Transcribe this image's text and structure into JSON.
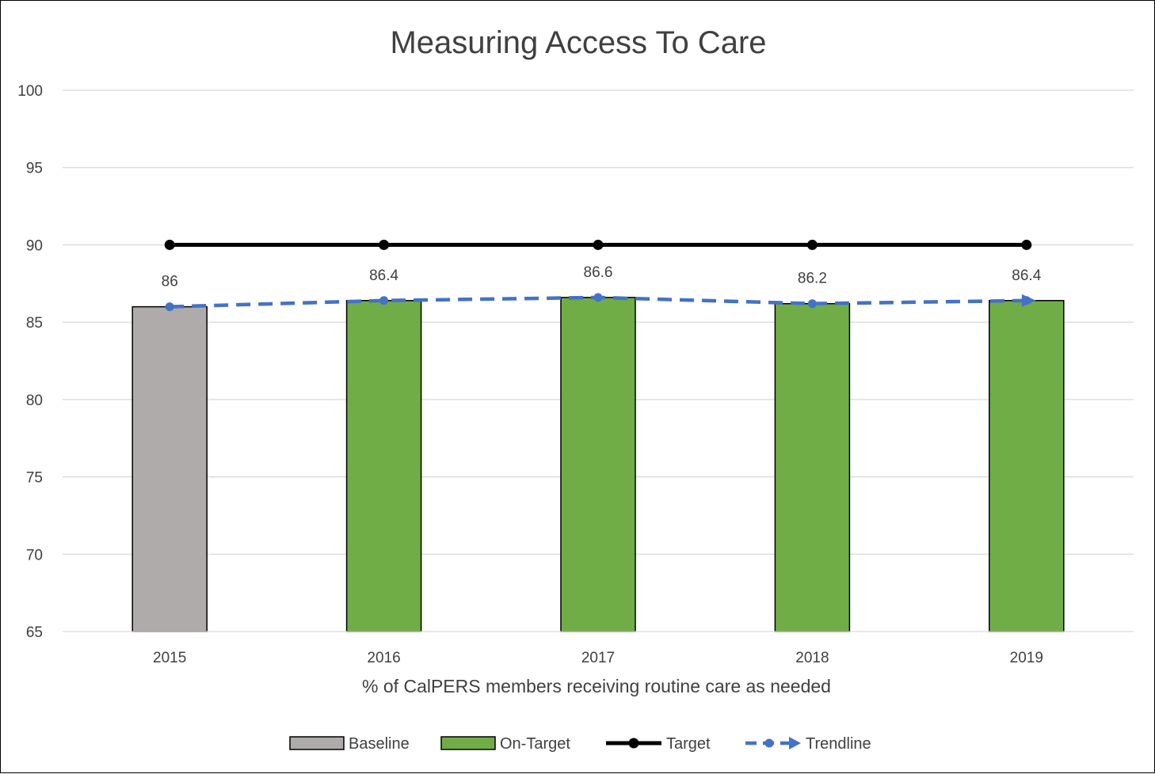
{
  "chart_data": {
    "type": "bar",
    "title": "Measuring Access To Care",
    "xlabel": "% of CalPERS members receiving routine care as needed",
    "ylabel": "",
    "ylim": [
      65,
      100
    ],
    "yticks": [
      65,
      70,
      75,
      80,
      85,
      90,
      95,
      100
    ],
    "grid": true,
    "legend_position": "bottom",
    "categories": [
      "2015",
      "2016",
      "2017",
      "2018",
      "2019"
    ],
    "series": [
      {
        "name": "Baseline",
        "kind": "bar",
        "color": "#AFABAB",
        "values": [
          86,
          null,
          null,
          null,
          null
        ]
      },
      {
        "name": "On-Target",
        "kind": "bar",
        "color": "#70AD47",
        "values": [
          null,
          86.4,
          86.6,
          86.2,
          86.4
        ]
      },
      {
        "name": "Target",
        "kind": "line",
        "color": "#000000",
        "style": "solid-marker",
        "values": [
          90,
          90,
          90,
          90,
          90
        ]
      },
      {
        "name": "Trendline",
        "kind": "line",
        "color": "#4472C4",
        "style": "dashed-marker-arrow",
        "values": [
          86,
          86.4,
          86.6,
          86.2,
          86.4
        ]
      }
    ],
    "data_labels": [
      "86",
      "86.4",
      "86.6",
      "86.2",
      "86.4"
    ]
  }
}
